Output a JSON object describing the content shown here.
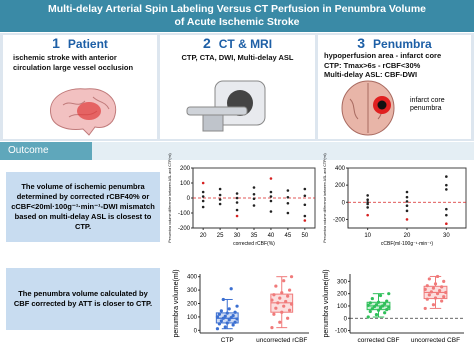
{
  "header": {
    "title_line1": "Multi-delay Arterial Spin Labeling Versus CT Perfusion in Penumbra Volume",
    "title_line2": "of Acute Ischemic Stroke"
  },
  "panels": [
    {
      "number": "1",
      "title": "Patient",
      "lines": [
        "ischemic stroke with anterior circulation large vessel occlusion"
      ]
    },
    {
      "number": "2",
      "title": "CT & MRI",
      "lines": [
        "CTP, CTA, DWI, Multi-delay ASL"
      ]
    },
    {
      "number": "3",
      "title": "Penumbra",
      "lines": [
        "hypoperfusion area - infarct core",
        "CTP: Tmax>6s - rCBF<30%",
        "Multi-delay ASL: CBF-DWI"
      ],
      "labels": [
        "infarct core",
        "penumbra"
      ]
    }
  ],
  "outcome": {
    "label": "Outcome",
    "findings": [
      "The volume of ischemic penumbra determined by corrected rCBF40% or cCBF<20ml·100g⁻¹·min⁻¹-DWI mismatch based on multi-delay ASL is closest to CTP.",
      "The penumbra volume calculated by CBF corrected by ATT is closer to CTP."
    ]
  },
  "chart_data": [
    {
      "type": "scatter",
      "x_label": "corrected rCBF(%)",
      "y_label": "Penumbra volume difference between ASL and CTP(ml)",
      "xlim": [
        17,
        53
      ],
      "xticks": [
        20,
        25,
        30,
        35,
        40,
        45,
        50
      ],
      "ylim": [
        -200,
        200
      ],
      "yticks": [
        -200,
        -100,
        0,
        100,
        200
      ],
      "refline": 0,
      "series": [
        {
          "color": "#222222",
          "x": [
            20,
            20,
            20,
            20,
            25,
            25,
            25,
            25,
            30,
            30,
            30,
            30,
            35,
            35,
            35,
            35,
            40,
            40,
            40,
            40,
            45,
            45,
            45,
            45,
            50,
            50,
            50,
            50
          ],
          "values": [
            -20,
            10,
            40,
            -60,
            -10,
            20,
            -40,
            60,
            0,
            30,
            -30,
            -80,
            -5,
            25,
            -50,
            70,
            10,
            -20,
            40,
            -90,
            5,
            -35,
            50,
            -100,
            15,
            -45,
            60,
            -120
          ]
        },
        {
          "color": "#d62020",
          "x": [
            20,
            30,
            40,
            50
          ],
          "values": [
            100,
            -120,
            130,
            -150
          ]
        }
      ]
    },
    {
      "type": "scatter",
      "x_label": "cCBF(ml·100g⁻¹·min⁻¹)",
      "y_label": "Penumbra volume difference between ASL and CTP(ml)",
      "xlim": [
        5,
        35
      ],
      "xticks": [
        10,
        20,
        30
      ],
      "ylim": [
        -300,
        400
      ],
      "yticks": [
        -200,
        0,
        200,
        400
      ],
      "refline": 0,
      "series": [
        {
          "color": "#222222",
          "x": [
            10,
            10,
            10,
            10,
            10,
            20,
            20,
            20,
            20,
            20,
            30,
            30,
            30,
            30,
            30
          ],
          "values": [
            -20,
            30,
            -60,
            80,
            0,
            -40,
            60,
            -100,
            120,
            10,
            -80,
            150,
            -150,
            200,
            300
          ]
        },
        {
          "color": "#d62020",
          "x": [
            10,
            20,
            30
          ],
          "values": [
            -150,
            -200,
            -250
          ]
        }
      ]
    },
    {
      "type": "box",
      "y_label": "penumbra volume(ml)",
      "categories": [
        "CTP",
        "uncorrected rCBF"
      ],
      "ylim": [
        -20,
        420
      ],
      "yticks": [
        0,
        100,
        200,
        300,
        400
      ],
      "boxes": [
        {
          "color": "#3b6fd1",
          "min": 12,
          "q1": 55,
          "median": 90,
          "q3": 130,
          "max": 230,
          "points": [
            12,
            25,
            40,
            48,
            55,
            60,
            70,
            78,
            85,
            90,
            95,
            100,
            105,
            110,
            120,
            128,
            135,
            145,
            160,
            180,
            230,
            310
          ]
        },
        {
          "color": "#f07a7a",
          "min": 20,
          "q1": 135,
          "median": 205,
          "q3": 270,
          "max": 400,
          "points": [
            20,
            60,
            90,
            120,
            135,
            150,
            165,
            180,
            195,
            205,
            215,
            225,
            240,
            255,
            265,
            280,
            300,
            330,
            370,
            400
          ]
        }
      ]
    },
    {
      "type": "box",
      "y_label": "penumbra volume(ml)",
      "categories": [
        "corrected CBF",
        "uncorrected CBF"
      ],
      "ylim": [
        -120,
        360
      ],
      "yticks": [
        -100,
        0,
        100,
        200,
        300
      ],
      "refline": 0,
      "boxes": [
        {
          "color": "#2fbf5a",
          "min": 10,
          "q1": 70,
          "median": 100,
          "q3": 130,
          "max": 200,
          "points": [
            10,
            30,
            45,
            55,
            65,
            70,
            78,
            85,
            90,
            95,
            100,
            105,
            110,
            118,
            125,
            130,
            140,
            160,
            185,
            200
          ]
        },
        {
          "color": "#f07a7a",
          "min": 80,
          "q1": 160,
          "median": 210,
          "q3": 260,
          "max": 340,
          "points": [
            80,
            110,
            140,
            155,
            165,
            175,
            190,
            200,
            210,
            215,
            225,
            235,
            245,
            255,
            265,
            280,
            300,
            320,
            340
          ]
        }
      ]
    }
  ]
}
